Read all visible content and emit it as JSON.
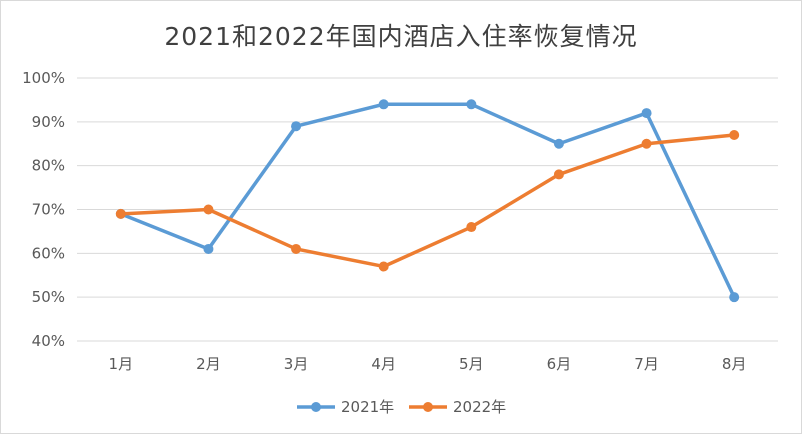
{
  "chart_data": {
    "type": "line",
    "title": "2021和2022年国内酒店入住率恢复情况",
    "categories": [
      "1月",
      "2月",
      "3月",
      "4月",
      "5月",
      "6月",
      "7月",
      "8月"
    ],
    "series": [
      {
        "name": "2021年",
        "color": "#5B9BD5",
        "values": [
          69,
          61,
          89,
          94,
          94,
          85,
          92,
          50
        ]
      },
      {
        "name": "2022年",
        "color": "#ED7D31",
        "values": [
          69,
          70,
          61,
          57,
          66,
          78,
          85,
          87
        ]
      }
    ],
    "ylim": [
      40,
      100
    ],
    "yticks": [
      40,
      50,
      60,
      70,
      80,
      90,
      100
    ],
    "ytick_labels": [
      "40%",
      "50%",
      "60%",
      "70%",
      "80%",
      "90%",
      "100%"
    ],
    "grid": true,
    "legend_position": "bottom"
  }
}
